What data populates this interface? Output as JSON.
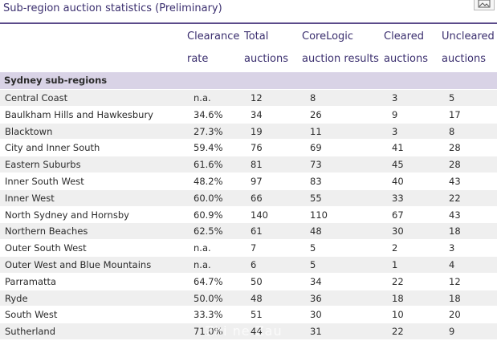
{
  "title": "Sub-region auction statistics (Preliminary)",
  "corner_icon": "image-icon",
  "headers": [
    {
      "line1": "Clearance",
      "line2": "rate"
    },
    {
      "line1": "Total",
      "line2": "auctions"
    },
    {
      "line1": "CoreLogic",
      "line2": "auction results"
    },
    {
      "line1": "Cleared",
      "line2": "auctions"
    },
    {
      "line1": "Uncleared",
      "line2": "auctions"
    }
  ],
  "section_label": "Sydney sub-regions",
  "rows": [
    [
      "Central Coast",
      "n.a.",
      "12",
      "8",
      "3",
      "5"
    ],
    [
      "Baulkham Hills and Hawkesbury",
      "34.6%",
      "34",
      "26",
      "9",
      "17"
    ],
    [
      "Blacktown",
      "27.3%",
      "19",
      "11",
      "3",
      "8"
    ],
    [
      "City and Inner South",
      "59.4%",
      "76",
      "69",
      "41",
      "28"
    ],
    [
      "Eastern Suburbs",
      "61.6%",
      "81",
      "73",
      "45",
      "28"
    ],
    [
      "Inner South West",
      "48.2%",
      "97",
      "83",
      "40",
      "43"
    ],
    [
      "Inner West",
      "60.0%",
      "66",
      "55",
      "33",
      "22"
    ],
    [
      "North Sydney and Hornsby",
      "60.9%",
      "140",
      "110",
      "67",
      "43"
    ],
    [
      "Northern Beaches",
      "62.5%",
      "61",
      "48",
      "30",
      "18"
    ],
    [
      "Outer South West",
      "n.a.",
      "7",
      "5",
      "2",
      "3"
    ],
    [
      "Outer West and Blue Mountains",
      "n.a.",
      "6",
      "5",
      "1",
      "4"
    ],
    [
      "Parramatta",
      "64.7%",
      "50",
      "34",
      "22",
      "12"
    ],
    [
      "Ryde",
      "50.0%",
      "48",
      "36",
      "18",
      "18"
    ],
    [
      "South West",
      "33.3%",
      "51",
      "30",
      "10",
      "20"
    ],
    [
      "Sutherland",
      "71.0%",
      "44",
      "31",
      "22",
      "9"
    ]
  ],
  "watermark": "Zhi ne Zau"
}
